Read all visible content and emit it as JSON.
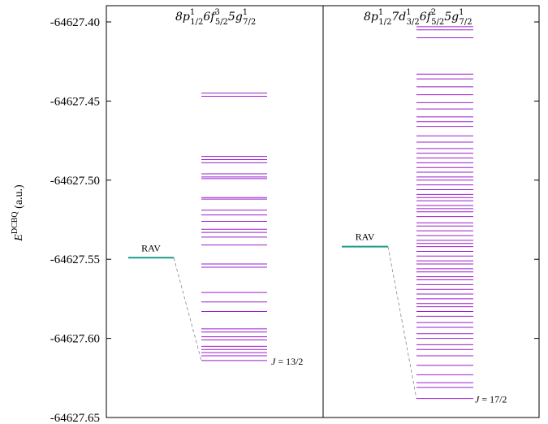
{
  "chart_data": {
    "type": "energy-level-diagram",
    "ylabel": "E^DCBQ (a.u.)",
    "ylim": [
      -64627.65,
      -64627.39
    ],
    "yticks": [
      -64627.4,
      -64627.45,
      -64627.5,
      -64627.55,
      -64627.6,
      -64627.65
    ],
    "ytick_labels": [
      "-64627.40",
      "-64627.45",
      "-64627.50",
      "-64627.55",
      "-64627.60",
      "-64627.65"
    ],
    "level_color": "#9a1fcc",
    "rav_color": "#1a9a8a",
    "panels": [
      {
        "title": "8p¹₁/₂6f³₅/₂5g¹₇/₂",
        "rav_label": "RAV",
        "rav_energy": -64627.549,
        "lowest_label": "J = 13/2",
        "lowest_energy": -64627.614,
        "levels": [
          -64627.445,
          -64627.447,
          -64627.485,
          -64627.487,
          -64627.489,
          -64627.496,
          -64627.498,
          -64627.499,
          -64627.511,
          -64627.512,
          -64627.519,
          -64627.522,
          -64627.526,
          -64627.531,
          -64627.533,
          -64627.536,
          -64627.541,
          -64627.553,
          -64627.555,
          -64627.571,
          -64627.577,
          -64627.583,
          -64627.594,
          -64627.596,
          -64627.599,
          -64627.601,
          -64627.605,
          -64627.607,
          -64627.609,
          -64627.611,
          -64627.614
        ]
      },
      {
        "title": "8p¹₁/₂7d¹₃/₂6f²₅/₂5g¹₇/₂",
        "rav_label": "RAV",
        "rav_energy": -64627.542,
        "lowest_label": "J = 17/2",
        "lowest_energy": -64627.638,
        "levels": [
          -64627.403,
          -64627.405,
          -64627.41,
          -64627.433,
          -64627.436,
          -64627.441,
          -64627.446,
          -64627.451,
          -64627.455,
          -64627.46,
          -64627.463,
          -64627.466,
          -64627.472,
          -64627.476,
          -64627.48,
          -64627.483,
          -64627.486,
          -64627.489,
          -64627.492,
          -64627.495,
          -64627.498,
          -64627.5,
          -64627.503,
          -64627.506,
          -64627.509,
          -64627.511,
          -64627.513,
          -64627.516,
          -64627.518,
          -64627.52,
          -64627.523,
          -64627.527,
          -64627.529,
          -64627.532,
          -64627.535,
          -64627.538,
          -64627.54,
          -64627.542,
          -64627.545,
          -64627.548,
          -64627.551,
          -64627.553,
          -64627.556,
          -64627.558,
          -64627.561,
          -64627.563,
          -64627.566,
          -64627.569,
          -64627.572,
          -64627.575,
          -64627.578,
          -64627.58,
          -64627.583,
          -64627.586,
          -64627.59,
          -64627.593,
          -64627.597,
          -64627.6,
          -64627.604,
          -64627.607,
          -64627.611,
          -64627.617,
          -64627.623,
          -64627.628,
          -64627.631,
          -64627.638
        ]
      }
    ]
  }
}
